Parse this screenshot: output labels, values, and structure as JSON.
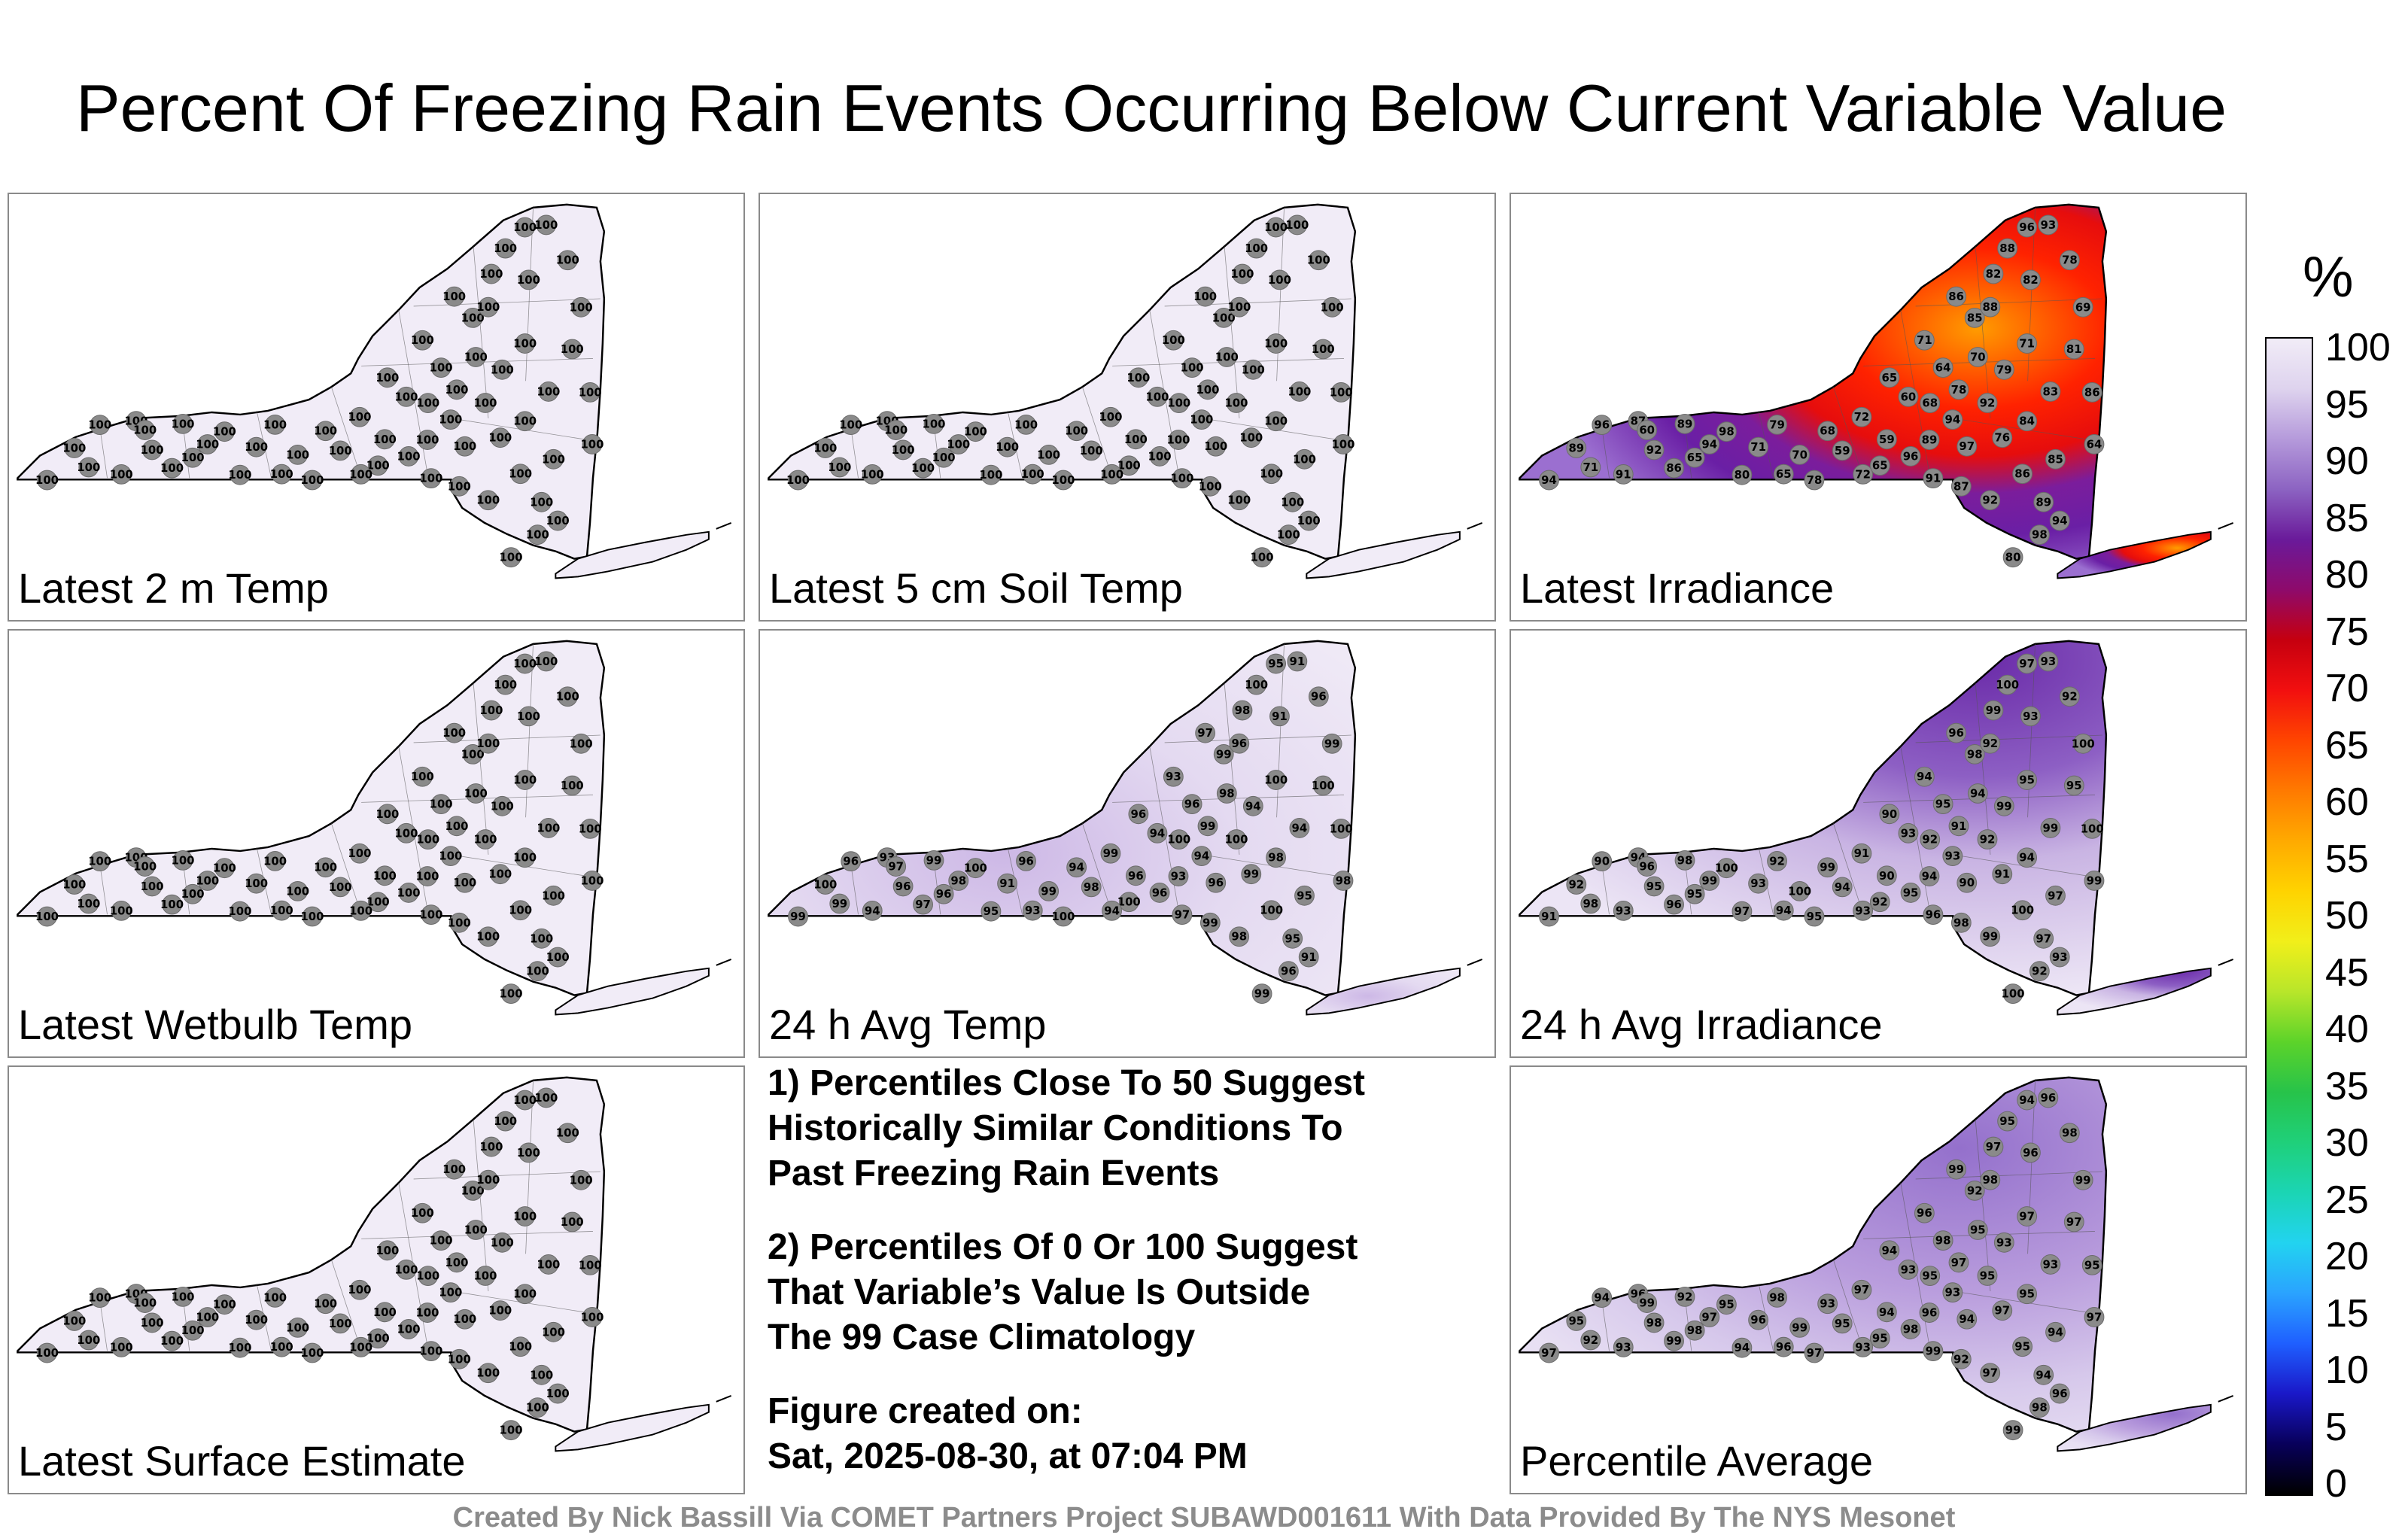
{
  "title": "Percent Of Freezing Rain Events Occurring Below Current Variable Value",
  "panels": [
    {
      "label": "Latest 2 m Temp",
      "scheme": "white",
      "values": [
        100
      ]
    },
    {
      "label": "Latest 5 cm Soil Temp",
      "scheme": "white",
      "values": [
        100
      ]
    },
    {
      "label": "Latest Irradiance",
      "scheme": "irr",
      "values": [
        94,
        89,
        96,
        91,
        87,
        92,
        86,
        89,
        94,
        98,
        80,
        71,
        79,
        70,
        78,
        68,
        59,
        72,
        65,
        65,
        60,
        71,
        64,
        86,
        85,
        82,
        88,
        96,
        93,
        78,
        69,
        81,
        83,
        84,
        76,
        92,
        97
      ]
    },
    {
      "label": "Latest Wetbulb Temp",
      "scheme": "white",
      "values": [
        100
      ]
    },
    {
      "label": "24 h Avg Temp",
      "scheme": "light",
      "values": [
        99,
        100,
        96,
        94,
        93,
        96,
        97,
        99,
        98,
        100,
        95,
        91,
        96,
        99,
        100,
        94,
        98
      ]
    },
    {
      "label": "24 h Avg Irradiance",
      "scheme": "avgirr",
      "values": [
        91,
        92,
        90,
        93,
        94,
        95,
        96,
        98,
        99,
        100,
        97,
        93,
        92,
        100,
        95,
        99,
        94
      ]
    },
    {
      "label": "Latest Surface Estimate",
      "scheme": "white",
      "values": [
        100
      ]
    },
    {
      "label": "Percentile Average",
      "scheme": "avg",
      "values": [
        97,
        95,
        94,
        93,
        96,
        98,
        99,
        92,
        97,
        95,
        94,
        96,
        98,
        99,
        97,
        93,
        95
      ]
    }
  ],
  "notes": {
    "n1": [
      "1) Percentiles Close To 50 Suggest",
      "Historically Similar Conditions To",
      "Past Freezing Rain Events"
    ],
    "n2": [
      "2) Percentiles Of 0 Or 100 Suggest",
      "That Variable’s Value Is Outside",
      "The 99 Case Climatology"
    ],
    "n3": [
      "Figure created on:",
      "Sat, 2025-08-30, at 07:04 PM"
    ]
  },
  "colorbar": {
    "unit": "%",
    "ticks": [
      "100",
      "95",
      "90",
      "85",
      "80",
      "75",
      "70",
      "65",
      "60",
      "55",
      "50",
      "45",
      "40",
      "35",
      "30",
      "25",
      "20",
      "15",
      "10",
      "5",
      "0"
    ],
    "colors": [
      "#000000",
      "#08005a",
      "#1a18c8",
      "#1f5fff",
      "#2aa3ff",
      "#22d3f0",
      "#1bd5b4",
      "#1fd07a",
      "#27c34a",
      "#5cd32a",
      "#b8e62a",
      "#f1ef1a",
      "#ffd300",
      "#ffaa00",
      "#ff7a00",
      "#ff4500",
      "#f20f0f",
      "#c6000f",
      "#8e0a6b",
      "#6a1a9a",
      "#8c63c2",
      "#b59adb",
      "#ded3ee",
      "#f1ecf7"
    ]
  },
  "footer": "Created By Nick Bassill Via COMET Partners Project SUBAWD001611 With Data Provided By The NYS Mesonet"
}
